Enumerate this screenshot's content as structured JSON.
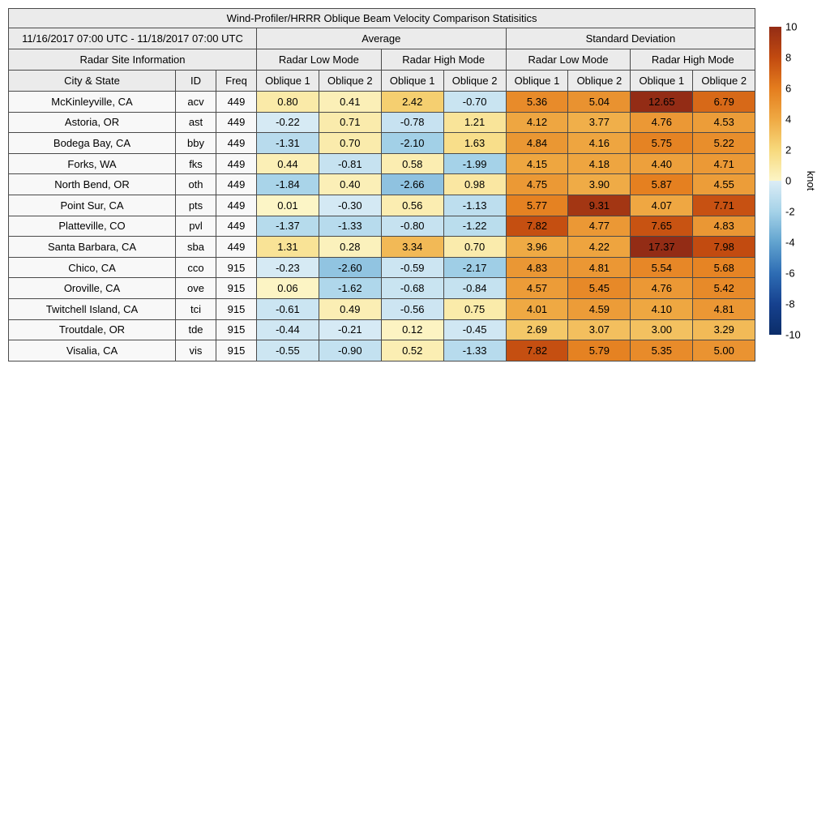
{
  "title": "Wind-Profiler/HRRR Oblique Beam Velocity Comparison Statisitics",
  "table": {
    "date_range": "11/16/2017 07:00 UTC - 11/18/2017 07:00 UTC",
    "group_headers": [
      "Average",
      "Standard Deviation"
    ],
    "section_header": "Radar Site Information",
    "mode_headers": [
      "Radar Low Mode",
      "Radar High Mode",
      "Radar Low Mode",
      "Radar High Mode"
    ],
    "site_headers": [
      "City & State",
      "ID",
      "Freq"
    ],
    "oblique_headers": [
      "Oblique 1",
      "Oblique 2",
      "Oblique 1",
      "Oblique 2",
      "Oblique 1",
      "Oblique 2",
      "Oblique 1",
      "Oblique 2"
    ]
  },
  "colorbar": {
    "unit": "knot",
    "ticks": [
      10,
      8,
      6,
      4,
      2,
      0,
      -2,
      -4,
      -6,
      -8,
      -10
    ],
    "min": -10,
    "max": 10,
    "warm_anchors": [
      [
        0,
        "#fcf5c6"
      ],
      [
        2,
        "#f7d97c"
      ],
      [
        4,
        "#efa943"
      ],
      [
        6,
        "#e47d1e"
      ],
      [
        8,
        "#c24a10"
      ],
      [
        10,
        "#932c15"
      ]
    ],
    "cold_anchors": [
      [
        0,
        "#dcedf6"
      ],
      [
        -2,
        "#a5d2e8"
      ],
      [
        -4,
        "#61a3cf"
      ],
      [
        -6,
        "#2e6db4"
      ],
      [
        -8,
        "#16418f"
      ],
      [
        -10,
        "#0b2d69"
      ]
    ]
  },
  "chart_data": {
    "type": "table",
    "title": "Wind-Profiler/HRRR Oblique Beam Velocity Comparison Statisitics",
    "value_unit": "knot",
    "color_range": [
      -10,
      10
    ],
    "columns": [
      "City & State",
      "ID",
      "Freq",
      "Avg Low Oblique 1",
      "Avg Low Oblique 2",
      "Avg High Oblique 1",
      "Avg High Oblique 2",
      "SD Low Oblique 1",
      "SD Low Oblique 2",
      "SD High Oblique 1",
      "SD High Oblique 2"
    ],
    "rows": [
      {
        "city": "McKinleyville, CA",
        "id": "acv",
        "freq": "449",
        "values": [
          0.8,
          0.41,
          2.42,
          -0.7,
          5.36,
          5.04,
          12.65,
          6.79
        ]
      },
      {
        "city": "Astoria, OR",
        "id": "ast",
        "freq": "449",
        "values": [
          -0.22,
          0.71,
          -0.78,
          1.21,
          4.12,
          3.77,
          4.76,
          4.53
        ]
      },
      {
        "city": "Bodega Bay, CA",
        "id": "bby",
        "freq": "449",
        "values": [
          -1.31,
          0.7,
          -2.1,
          1.63,
          4.84,
          4.16,
          5.75,
          5.22
        ]
      },
      {
        "city": "Forks, WA",
        "id": "fks",
        "freq": "449",
        "values": [
          0.44,
          -0.81,
          0.58,
          -1.99,
          4.15,
          4.18,
          4.4,
          4.71
        ]
      },
      {
        "city": "North Bend, OR",
        "id": "oth",
        "freq": "449",
        "values": [
          -1.84,
          0.4,
          -2.66,
          0.98,
          4.75,
          3.9,
          5.87,
          4.55
        ]
      },
      {
        "city": "Point Sur, CA",
        "id": "pts",
        "freq": "449",
        "values": [
          0.01,
          -0.3,
          0.56,
          -1.13,
          5.77,
          9.31,
          4.07,
          7.71
        ]
      },
      {
        "city": "Platteville, CO",
        "id": "pvl",
        "freq": "449",
        "values": [
          -1.37,
          -1.33,
          -0.8,
          -1.22,
          7.82,
          4.77,
          7.65,
          4.83
        ]
      },
      {
        "city": "Santa Barbara, CA",
        "id": "sba",
        "freq": "449",
        "values": [
          1.31,
          0.28,
          3.34,
          0.7,
          3.96,
          4.22,
          17.37,
          7.98
        ]
      },
      {
        "city": "Chico, CA",
        "id": "cco",
        "freq": "915",
        "values": [
          -0.23,
          -2.6,
          -0.59,
          -2.17,
          4.83,
          4.81,
          5.54,
          5.68
        ]
      },
      {
        "city": "Oroville, CA",
        "id": "ove",
        "freq": "915",
        "values": [
          0.06,
          -1.62,
          -0.68,
          -0.84,
          4.57,
          5.45,
          4.76,
          5.42
        ]
      },
      {
        "city": "Twitchell Island, CA",
        "id": "tci",
        "freq": "915",
        "values": [
          -0.61,
          0.49,
          -0.56,
          0.75,
          4.01,
          4.59,
          4.1,
          4.81
        ]
      },
      {
        "city": "Troutdale, OR",
        "id": "tde",
        "freq": "915",
        "values": [
          -0.44,
          -0.21,
          0.12,
          -0.45,
          2.69,
          3.07,
          3.0,
          3.29
        ]
      },
      {
        "city": "Visalia, CA",
        "id": "vis",
        "freq": "915",
        "values": [
          -0.55,
          -0.9,
          0.52,
          -1.33,
          7.82,
          5.79,
          5.35,
          5.0
        ]
      }
    ]
  }
}
